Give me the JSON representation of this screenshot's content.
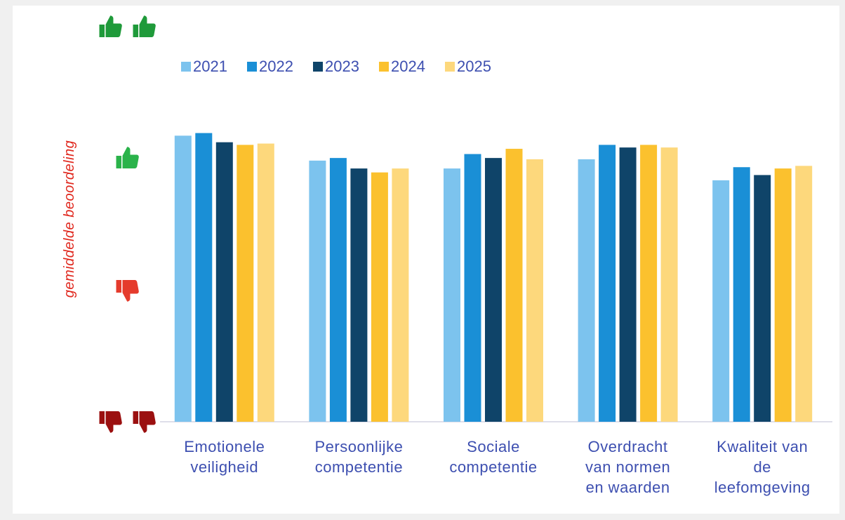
{
  "chart_data": {
    "type": "bar",
    "y_label": "gemiddelde beoordeling",
    "categories": [
      "Emotionele veiligheid",
      "Persoonlijke competentie",
      "Sociale competentie",
      "Overdracht van normen en waarden",
      "Kwaliteit van de leefomgeving"
    ],
    "series": [
      {
        "name": "2021",
        "color": "#7cc3ee",
        "values": [
          3.18,
          2.99,
          2.93,
          3.0,
          2.84
        ]
      },
      {
        "name": "2022",
        "color": "#1a8fd6",
        "values": [
          3.2,
          3.01,
          3.04,
          3.11,
          2.94
        ]
      },
      {
        "name": "2023",
        "color": "#0f4469",
        "values": [
          3.13,
          2.93,
          3.01,
          3.09,
          2.88
        ]
      },
      {
        "name": "2024",
        "color": "#fbc12e",
        "values": [
          3.11,
          2.9,
          3.08,
          3.11,
          2.93
        ]
      },
      {
        "name": "2025",
        "color": "#fdd87c",
        "values": [
          3.12,
          2.93,
          3.0,
          3.09,
          2.95
        ]
      }
    ],
    "ylim": [
      1,
      4
    ],
    "yticks": [
      1,
      2,
      3,
      4
    ]
  }
}
